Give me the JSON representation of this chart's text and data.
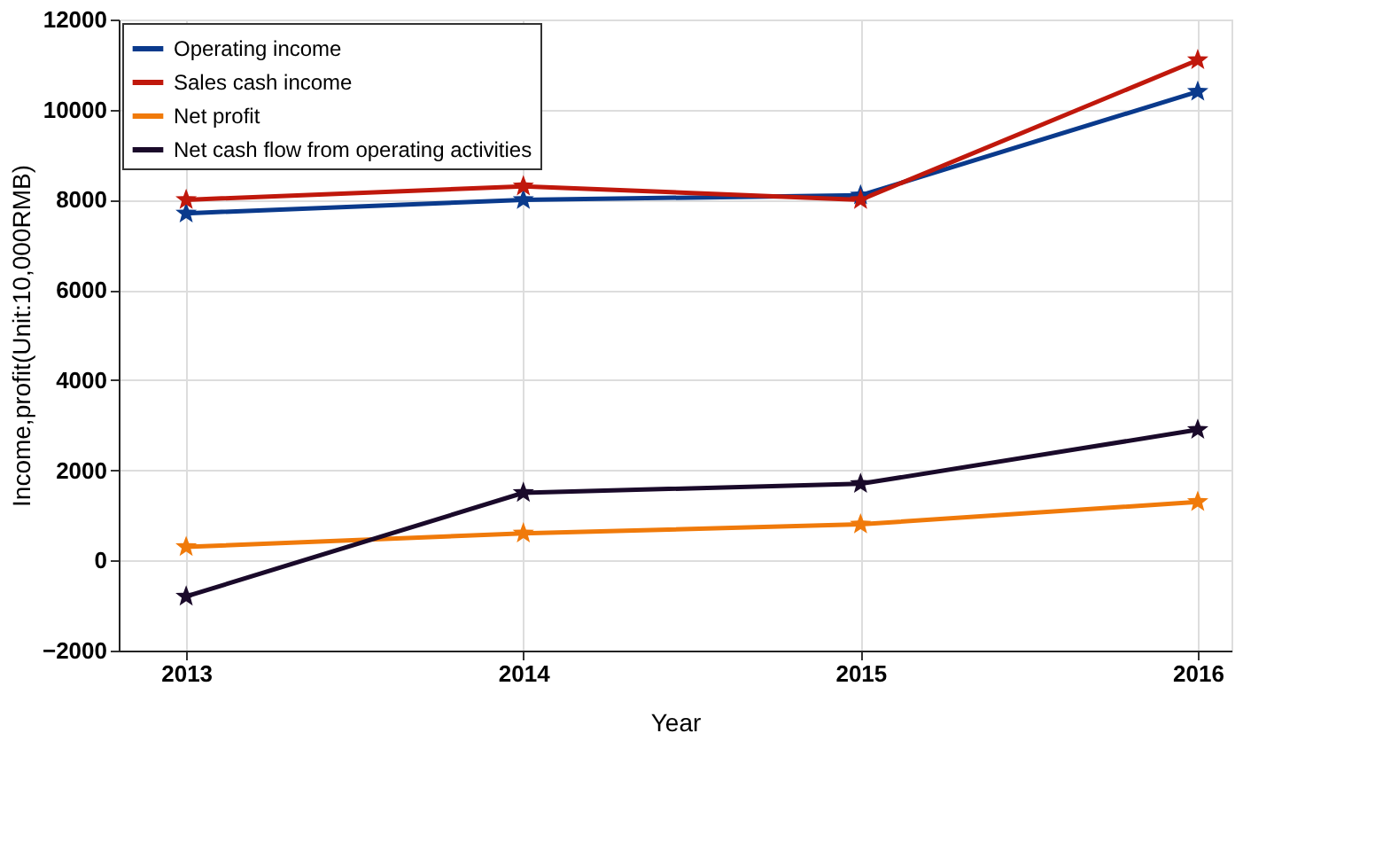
{
  "chart_data": {
    "type": "line",
    "xlabel": "Year",
    "ylabel": "Income,profit(Unit:10,000RMB)",
    "x": [
      2013,
      2014,
      2015,
      2016
    ],
    "xlim": [
      2012.8,
      2016.1
    ],
    "xticks": [
      2013,
      2014,
      2015,
      2016
    ],
    "ylim": [
      -2000,
      12000
    ],
    "yticks": [
      -2000,
      0,
      2000,
      4000,
      6000,
      8000,
      10000,
      12000
    ],
    "grid": true,
    "legend": "top left",
    "marker": "star",
    "line_style": "solid",
    "series": [
      {
        "name": "Operating income",
        "color": "#0a3a8c",
        "values": [
          7700,
          8000,
          8100,
          10400
        ]
      },
      {
        "name": "Sales cash income",
        "color": "#c0180c",
        "values": [
          8000,
          8300,
          8000,
          11100
        ]
      },
      {
        "name": "Net profit",
        "color": "#f07a0a",
        "values": [
          300,
          600,
          800,
          1300
        ]
      },
      {
        "name": "Net cash flow from operating activities",
        "color": "#1a0a2a",
        "values": [
          -800,
          1500,
          1700,
          2900
        ]
      }
    ]
  }
}
